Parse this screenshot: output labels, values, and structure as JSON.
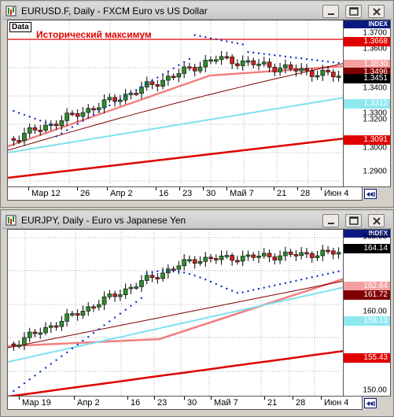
{
  "window1": {
    "title": "EURUSD.F, Daily - FXCM Euro vs US Dollar",
    "data_label": "Data",
    "annotation": "Исторический максимум",
    "y_axis": {
      "index_label": "INDEX",
      "ticks": [
        "1.3700",
        "1.3600",
        "1.3400",
        "1.3300",
        "1.3200",
        "1.3000",
        "1.2900"
      ],
      "tags": [
        {
          "text": "1.3668",
          "bg": "#e00000",
          "fg": "#ffffff"
        },
        {
          "text": "1.3530",
          "bg": "#f4a0a0",
          "fg": "#ffffff"
        },
        {
          "text": "1.3496",
          "bg": "#800000",
          "fg": "#ffffff"
        },
        {
          "text": "1.3451",
          "bg": "#000000",
          "fg": "#ffffff"
        },
        {
          "text": "1.3312",
          "bg": "#8fe8f0",
          "fg": "#ffffff"
        },
        {
          "text": "1.3091",
          "bg": "#e00000",
          "fg": "#ffffff"
        }
      ]
    },
    "x_axis": [
      "Мар 12",
      "26",
      "Апр 2",
      "16",
      "23",
      "30",
      "Май 7",
      "21",
      "28",
      "Июн 4"
    ]
  },
  "window2": {
    "title": "EURJPY, Daily - Euro vs Japanese Yen",
    "y_axis": {
      "index_label": "INDEX",
      "ticks": [
        "165.00",
        "160.00",
        "150.00"
      ],
      "tags": [
        {
          "text": "164.14",
          "bg": "#000000",
          "fg": "#ffffff"
        },
        {
          "text": "162.64",
          "bg": "#f4a0a0",
          "fg": "#ffffff"
        },
        {
          "text": "161.72",
          "bg": "#800000",
          "fg": "#ffffff"
        },
        {
          "text": "158.13",
          "bg": "#8fe8f0",
          "fg": "#ffffff"
        },
        {
          "text": "155.43",
          "bg": "#e00000",
          "fg": "#ffffff"
        }
      ]
    },
    "x_axis": [
      "Мар 19",
      "Апр 2",
      "16",
      "23",
      "30",
      "Май 7",
      "21",
      "28",
      "Июн 4"
    ]
  },
  "colors": {
    "candle_up": "#2e8b2e",
    "candle_down": "#d02020",
    "psar": "#1030c0",
    "ma_fast": "#f08080",
    "ma_mid": "#800000",
    "ma_slow": "#80e0f0",
    "ma_long": "#e00000",
    "resistance": "#e00000"
  },
  "icons": {
    "app": "chart-app-icon",
    "minimize": "minimize-icon",
    "maximize": "maximize-icon",
    "close": "close-icon",
    "nav": "scroll-to-end-icon"
  }
}
